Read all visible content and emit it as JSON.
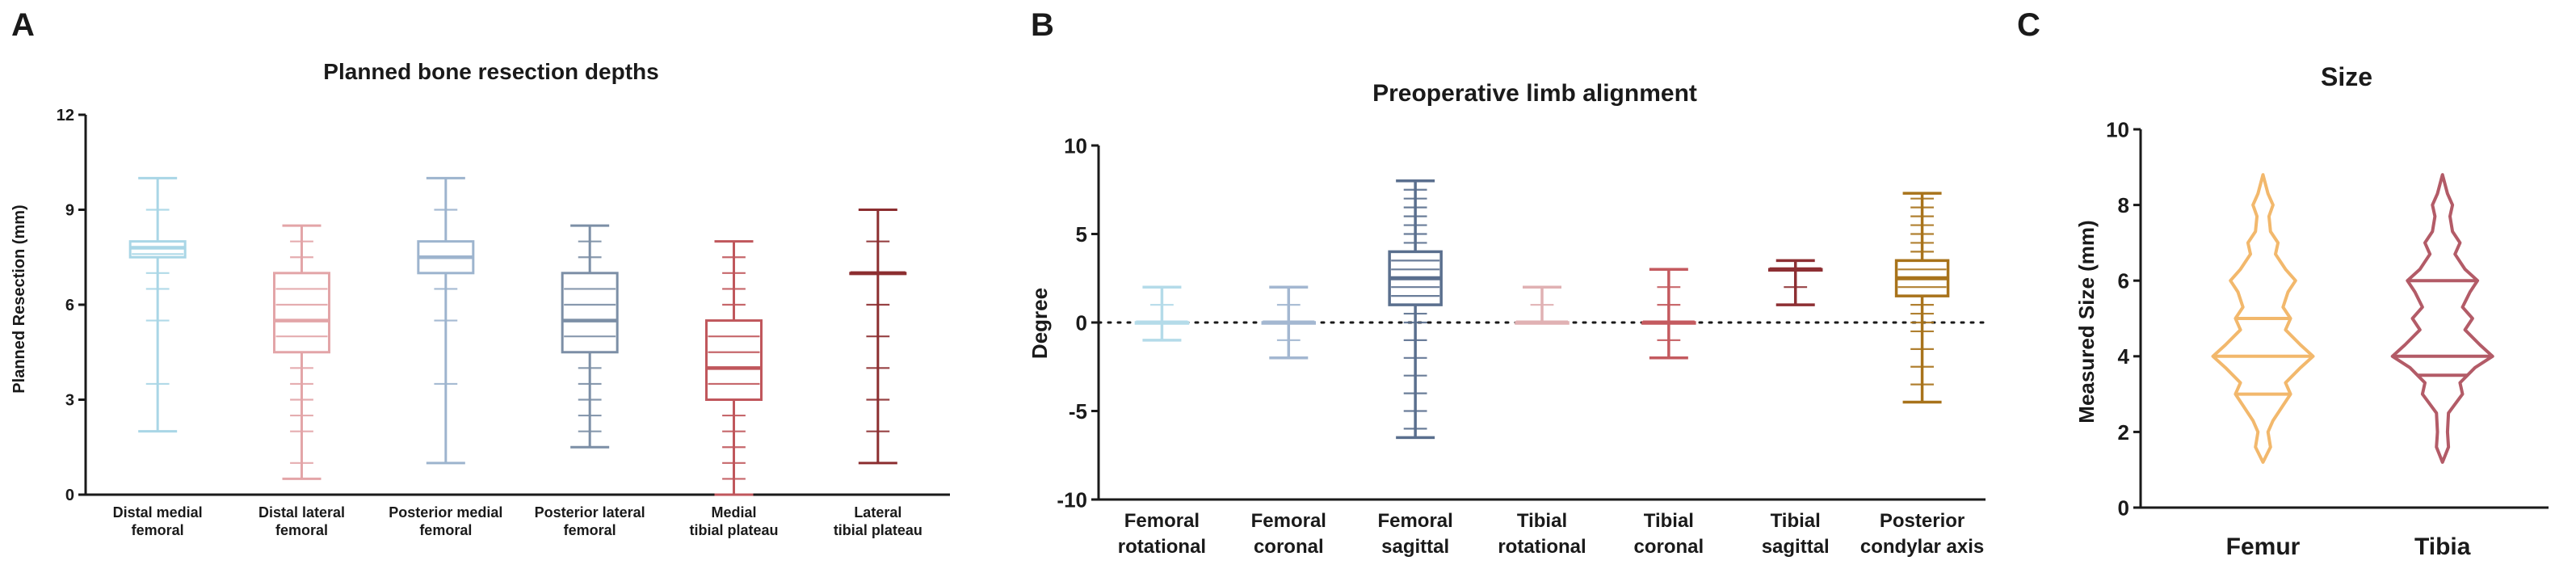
{
  "chart_data": [
    {
      "panel": "A",
      "type": "box",
      "title": "Planned bone resection depths",
      "xlabel": "",
      "ylabel": "Planned Resection (mm)",
      "ylim": [
        0,
        12
      ],
      "yticks": [
        0,
        3,
        6,
        9,
        12
      ],
      "categories": [
        {
          "lines": [
            "Distal medial",
            "femoral"
          ],
          "color": "#a9d6e6",
          "min": 2,
          "q1": 7.5,
          "median": 7.8,
          "q3": 8,
          "max": 10,
          "points": [
            2,
            3.5,
            5.5,
            6.5,
            7,
            7.5,
            7.6,
            7.8,
            8,
            9,
            10
          ]
        },
        {
          "lines": [
            "Distal lateral",
            "femoral"
          ],
          "color": "#e3a5a8",
          "min": 0.5,
          "q1": 4.5,
          "median": 5.5,
          "q3": 7,
          "max": 8.5,
          "points": [
            0.5,
            1,
            2,
            2.5,
            3,
            3.5,
            4,
            4.5,
            5,
            5.5,
            6,
            6.5,
            7,
            7.5,
            8,
            8.5
          ]
        },
        {
          "lines": [
            "Posterior medial",
            "femoral"
          ],
          "color": "#9db4ce",
          "min": 1,
          "q1": 7,
          "median": 7.5,
          "q3": 8,
          "max": 10,
          "points": [
            1,
            3.5,
            5.5,
            6.5,
            7,
            7.5,
            8,
            9,
            10
          ]
        },
        {
          "lines": [
            "Posterior lateral",
            "femoral"
          ],
          "color": "#7c8fa6",
          "min": 1.5,
          "q1": 4.5,
          "median": 5.5,
          "q3": 7,
          "max": 8.5,
          "points": [
            1.5,
            2,
            2.5,
            3,
            3.5,
            4,
            4.5,
            5,
            5.5,
            6,
            6.5,
            7,
            7.5,
            8,
            8.5
          ]
        },
        {
          "lines": [
            "Medial",
            "tibial plateau"
          ],
          "color": "#c0575c",
          "min": 0,
          "q1": 3,
          "median": 4,
          "q3": 5.5,
          "max": 8,
          "points": [
            0,
            0.5,
            1,
            1.5,
            2,
            2.5,
            3,
            3.5,
            4,
            4.5,
            5,
            5.5,
            6,
            6.5,
            7,
            7.5,
            8
          ]
        },
        {
          "lines": [
            "Lateral",
            "tibial plateau"
          ],
          "color": "#8c2e30",
          "min": 1,
          "q1": 7,
          "median": 7,
          "q3": 7,
          "max": 9,
          "points": [
            1,
            2,
            3,
            4,
            5,
            6,
            7,
            8,
            9
          ]
        }
      ]
    },
    {
      "panel": "B",
      "type": "box",
      "title": "Preoperative limb alignment",
      "xlabel": "",
      "ylabel": "Degree",
      "ylim": [
        -10,
        10
      ],
      "yticks": [
        -10,
        -5,
        0,
        5,
        10
      ],
      "reference_line": 0,
      "categories": [
        {
          "lines": [
            "Femoral",
            "rotational"
          ],
          "color": "#b4dbe9",
          "min": -1,
          "q1": 0,
          "median": 0,
          "q3": 0,
          "max": 2,
          "points": [
            -1,
            0,
            1,
            2
          ]
        },
        {
          "lines": [
            "Femoral",
            "coronal"
          ],
          "color": "#a3b7d1",
          "min": -2,
          "q1": 0,
          "median": 0,
          "q3": 0,
          "max": 2,
          "points": [
            -2,
            -1,
            0,
            1,
            2
          ]
        },
        {
          "lines": [
            "Femoral",
            "sagittal"
          ],
          "color": "#5a6f8e",
          "min": -6.5,
          "q1": 1,
          "median": 2.5,
          "q3": 4,
          "max": 8,
          "points": [
            -6.5,
            -6,
            -5,
            -4,
            -3,
            -2,
            -1,
            0,
            0.5,
            1,
            1.5,
            2,
            2.5,
            3,
            3.5,
            4,
            4.5,
            5,
            5.5,
            6,
            6.5,
            7,
            7.5,
            8
          ]
        },
        {
          "lines": [
            "Tibial",
            "rotational"
          ],
          "color": "#e0b1b3",
          "min": 0,
          "q1": 0,
          "median": 0,
          "q3": 0,
          "max": 2,
          "points": [
            0,
            1,
            2
          ]
        },
        {
          "lines": [
            "Tibial",
            "coronal"
          ],
          "color": "#c45a5f",
          "min": -2,
          "q1": 0,
          "median": 0,
          "q3": 0,
          "max": 3,
          "points": [
            -2,
            -1,
            0,
            1,
            2,
            3
          ]
        },
        {
          "lines": [
            "Tibial",
            "sagittal"
          ],
          "color": "#8d2f33",
          "min": 1,
          "q1": 3,
          "median": 3,
          "q3": 3,
          "max": 3.5,
          "points": [
            1,
            2,
            3,
            3.5
          ]
        },
        {
          "lines": [
            "Posterior",
            "condylar axis"
          ],
          "color": "#a8731b",
          "min": -4.5,
          "q1": 1.5,
          "median": 2.5,
          "q3": 3.5,
          "max": 7.3,
          "points": [
            -4.5,
            -3.5,
            -2.5,
            -1.5,
            -0.5,
            0,
            0.5,
            1,
            1.5,
            2,
            2.5,
            3,
            3.5,
            4,
            4.5,
            5,
            5.5,
            6,
            6.5,
            7,
            7.3
          ]
        }
      ]
    },
    {
      "panel": "C",
      "type": "violin",
      "title": "Size",
      "xlabel": "",
      "ylabel": "Measured Size (mm)",
      "ylim": [
        0,
        10
      ],
      "yticks": [
        0,
        2,
        4,
        6,
        8,
        10
      ],
      "categories": [
        {
          "label": "Femur",
          "color": "#f2b86c",
          "min": 1.2,
          "max": 8.8,
          "quartiles": [
            3,
            4,
            5
          ],
          "width_profile": [
            [
              1.2,
              0
            ],
            [
              1.6,
              0.15
            ],
            [
              2,
              0.1
            ],
            [
              2.3,
              0.2
            ],
            [
              2.7,
              0.4
            ],
            [
              3,
              0.55
            ],
            [
              3.3,
              0.45
            ],
            [
              3.7,
              0.75
            ],
            [
              4,
              1
            ],
            [
              4.3,
              0.75
            ],
            [
              4.7,
              0.45
            ],
            [
              5,
              0.55
            ],
            [
              5.3,
              0.4
            ],
            [
              5.7,
              0.5
            ],
            [
              6,
              0.65
            ],
            [
              6.3,
              0.45
            ],
            [
              6.7,
              0.25
            ],
            [
              7,
              0.3
            ],
            [
              7.3,
              0.15
            ],
            [
              7.7,
              0.12
            ],
            [
              8,
              0.2
            ],
            [
              8.3,
              0.1
            ],
            [
              8.8,
              0
            ]
          ]
        },
        {
          "label": "Tibia",
          "color": "#b35b67",
          "min": 1.2,
          "max": 8.8,
          "quartiles": [
            3.5,
            4,
            6
          ],
          "width_profile": [
            [
              1.2,
              0
            ],
            [
              1.6,
              0.12
            ],
            [
              2,
              0.1
            ],
            [
              2.5,
              0.12
            ],
            [
              3,
              0.4
            ],
            [
              3.3,
              0.35
            ],
            [
              3.7,
              0.65
            ],
            [
              4,
              1
            ],
            [
              4.3,
              0.75
            ],
            [
              4.7,
              0.45
            ],
            [
              5,
              0.6
            ],
            [
              5.3,
              0.4
            ],
            [
              5.7,
              0.55
            ],
            [
              6,
              0.7
            ],
            [
              6.3,
              0.45
            ],
            [
              6.7,
              0.25
            ],
            [
              7,
              0.35
            ],
            [
              7.3,
              0.2
            ],
            [
              7.7,
              0.15
            ],
            [
              8,
              0.2
            ],
            [
              8.3,
              0.1
            ],
            [
              8.8,
              0
            ]
          ]
        }
      ]
    }
  ],
  "panel_letters": [
    "A",
    "B",
    "C"
  ]
}
